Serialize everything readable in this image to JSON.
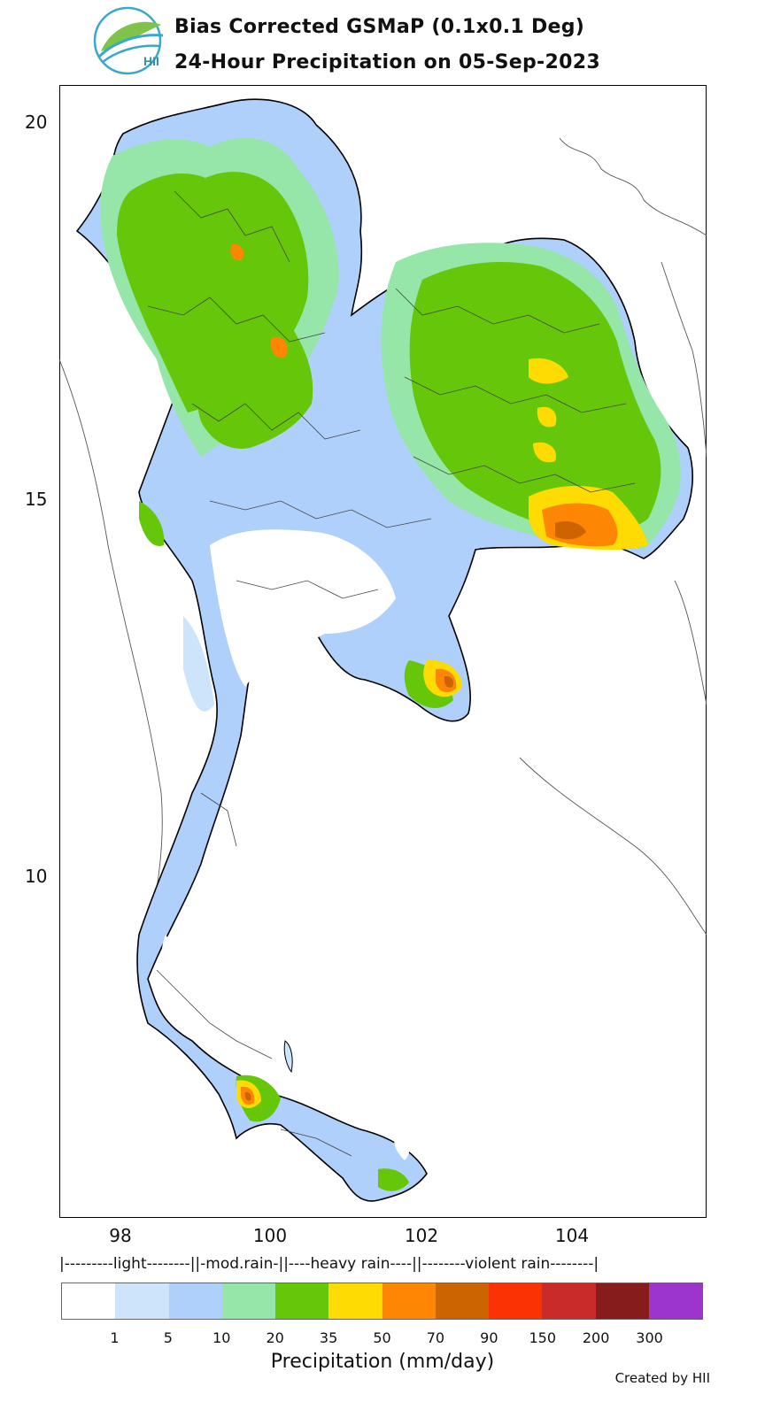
{
  "header": {
    "title_line1": "Bias Corrected GSMaP (0.1x0.1 Deg)",
    "title_line2": "24-Hour Precipitation on 05-Sep-2023",
    "logo_text": "HII"
  },
  "map": {
    "y_ticks": [
      "20",
      "15",
      "10"
    ],
    "x_ticks": [
      "98",
      "100",
      "102",
      "104"
    ],
    "lat_range": [
      5.5,
      20.5
    ],
    "lon_range": [
      97.2,
      105.7
    ]
  },
  "legend": {
    "categories_text": "|---------light--------||-mod.rain-||----heavy rain----||--------violent rain--------|",
    "bins": [
      {
        "color": "#ffffff"
      },
      {
        "color": "#cde4fb"
      },
      {
        "color": "#afd0fb"
      },
      {
        "color": "#96e6a9"
      },
      {
        "color": "#66c60a"
      },
      {
        "color": "#fddb03"
      },
      {
        "color": "#fe8605"
      },
      {
        "color": "#cd6402"
      },
      {
        "color": "#fb3304"
      },
      {
        "color": "#c92a2a"
      },
      {
        "color": "#871c1c"
      },
      {
        "color": "#9b35cc"
      }
    ],
    "tick_labels": [
      "1",
      "5",
      "10",
      "20",
      "35",
      "50",
      "70",
      "90",
      "150",
      "200",
      "300"
    ],
    "axis_label": "Precipitation (mm/day)"
  },
  "footer": {
    "credit": "Created by HII"
  }
}
